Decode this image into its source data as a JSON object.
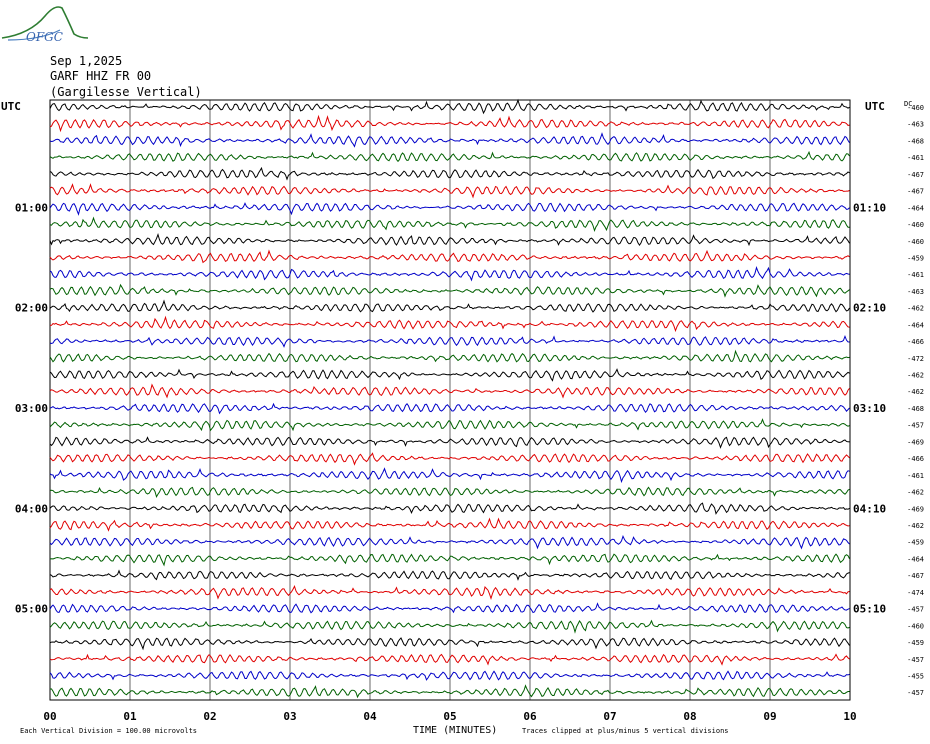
{
  "header": {
    "logo_text": "OFGC",
    "date": "Sep 1,2025",
    "station": "GARF HHZ FR 00",
    "location": "(Gargilesse Vertical)"
  },
  "left_axis_label": "UTC",
  "right_axis_label": "UTC",
  "dc_label": "DC",
  "footer": {
    "scale_note": "Each Vertical Division =  100.00 microvolts",
    "xlabel": "TIME (MINUTES)",
    "clip_note": "Traces clipped at plus/minus 5 vertical divisions"
  },
  "colors": {
    "cycle": [
      "#000000",
      "#e00000",
      "#0000c8",
      "#006000"
    ],
    "grid": "#000000"
  },
  "chart_data": {
    "type": "line",
    "title": "",
    "xlabel": "TIME (MINUTES)",
    "ylabel": "",
    "xlim": [
      0,
      10
    ],
    "x_ticks": [
      "00",
      "01",
      "02",
      "03",
      "04",
      "05",
      "06",
      "07",
      "08",
      "09",
      "10"
    ],
    "left_time_labels": [
      {
        "row": 6,
        "label": "01:00"
      },
      {
        "row": 12,
        "label": "02:00"
      },
      {
        "row": 18,
        "label": "03:00"
      },
      {
        "row": 24,
        "label": "04:00"
      },
      {
        "row": 30,
        "label": "05:00"
      }
    ],
    "right_time_labels": [
      {
        "row": 6,
        "label": "01:10"
      },
      {
        "row": 12,
        "label": "02:10"
      },
      {
        "row": 18,
        "label": "03:10"
      },
      {
        "row": 24,
        "label": "04:10"
      },
      {
        "row": 30,
        "label": "05:10"
      }
    ],
    "dc_offsets": [
      -460,
      -463,
      -468,
      -461,
      -467,
      -467,
      -464,
      -460,
      -460,
      -459,
      -461,
      -463,
      -462,
      -464,
      -466,
      -472,
      -462,
      -462,
      -468,
      -457,
      -469,
      -466,
      -461,
      -462,
      -469,
      -462,
      -459,
      -464,
      -467,
      -474,
      -457,
      -460,
      -459,
      -457,
      -455,
      -457
    ],
    "grid": true
  }
}
